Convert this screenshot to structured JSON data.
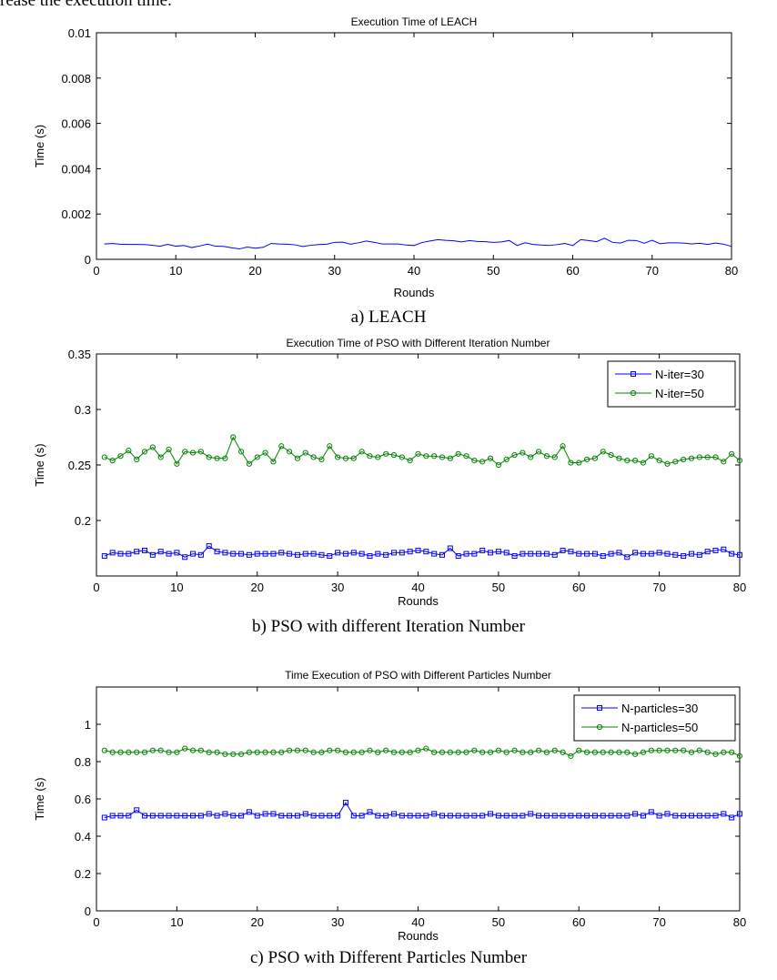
{
  "intro_text": "rease the execution time.",
  "chart_data": [
    {
      "type": "line",
      "title": "Execution Time of LEACH",
      "xlabel": "Rounds",
      "ylabel": "Time (s)",
      "caption": "a)    LEACH",
      "xlim": [
        0,
        80
      ],
      "ylim": [
        0,
        0.01
      ],
      "xticks": [
        "0",
        "10",
        "20",
        "30",
        "40",
        "50",
        "60",
        "70",
        "80"
      ],
      "yticks": [
        "0",
        "0.002",
        "0.004",
        "0.006",
        "0.008",
        "0.01"
      ],
      "grid": false,
      "legend": null,
      "colors": [
        "#0000ff"
      ],
      "x": [
        1,
        2,
        3,
        4,
        5,
        6,
        7,
        8,
        9,
        10,
        11,
        12,
        13,
        14,
        15,
        16,
        17,
        18,
        19,
        20,
        21,
        22,
        23,
        24,
        25,
        26,
        27,
        28,
        29,
        30,
        31,
        32,
        33,
        34,
        35,
        36,
        37,
        38,
        39,
        40,
        41,
        42,
        43,
        44,
        45,
        46,
        47,
        48,
        49,
        50,
        51,
        52,
        53,
        54,
        55,
        56,
        57,
        58,
        59,
        60,
        61,
        62,
        63,
        64,
        65,
        66,
        67,
        68,
        69,
        70,
        71,
        72,
        73,
        74,
        75,
        76,
        77,
        78,
        79,
        80
      ],
      "series": [
        {
          "values": [
            0.00068,
            0.0007,
            0.00067,
            0.00066,
            0.00066,
            0.00065,
            0.00062,
            0.00058,
            0.00066,
            0.00058,
            0.00061,
            0.00052,
            0.00059,
            0.00067,
            0.00058,
            0.00057,
            0.00051,
            0.00046,
            0.00054,
            0.00049,
            0.00053,
            0.0007,
            0.00068,
            0.00067,
            0.00064,
            0.00057,
            0.00062,
            0.00065,
            0.00067,
            0.00075,
            0.00076,
            0.00067,
            0.00073,
            0.00081,
            0.00075,
            0.00068,
            0.00068,
            0.00068,
            0.00063,
            0.00061,
            0.00074,
            0.00081,
            0.00087,
            0.00084,
            0.00082,
            0.00077,
            0.00083,
            0.00079,
            0.00078,
            0.00075,
            0.00077,
            0.00083,
            0.00061,
            0.00073,
            0.00066,
            0.00063,
            0.00061,
            0.00065,
            0.0007,
            0.00061,
            0.00087,
            0.00083,
            0.00078,
            0.00093,
            0.00075,
            0.00072,
            0.00084,
            0.00083,
            0.00071,
            0.00084,
            0.00069,
            0.00073,
            0.00073,
            0.00072,
            0.00068,
            0.00071,
            0.00066,
            0.00072,
            0.00067,
            0.00057
          ]
        }
      ]
    },
    {
      "type": "line",
      "title": "Execution Time of PSO with Different Iteration Number",
      "xlabel": "Rounds",
      "ylabel": "Time (s)",
      "caption": "b)    PSO with different Iteration Number",
      "xlim": [
        0,
        80
      ],
      "ylim": [
        0.15,
        0.35
      ],
      "xticks": [
        "0",
        "10",
        "20",
        "30",
        "40",
        "50",
        "60",
        "70",
        "80"
      ],
      "yticks": [
        "0.2",
        "0.25",
        "0.3",
        "0.35"
      ],
      "grid": false,
      "legend": "top-right",
      "colors": [
        "#0000ff",
        "#008000"
      ],
      "x": [
        1,
        2,
        3,
        4,
        5,
        6,
        7,
        8,
        9,
        10,
        11,
        12,
        13,
        14,
        15,
        16,
        17,
        18,
        19,
        20,
        21,
        22,
        23,
        24,
        25,
        26,
        27,
        28,
        29,
        30,
        31,
        32,
        33,
        34,
        35,
        36,
        37,
        38,
        39,
        40,
        41,
        42,
        43,
        44,
        45,
        46,
        47,
        48,
        49,
        50,
        51,
        52,
        53,
        54,
        55,
        56,
        57,
        58,
        59,
        60,
        61,
        62,
        63,
        64,
        65,
        66,
        67,
        68,
        69,
        70,
        71,
        72,
        73,
        74,
        75,
        76,
        77,
        78,
        79,
        80
      ],
      "series": [
        {
          "name": "N-iter=30",
          "marker": "square",
          "values": [
            0.168,
            0.171,
            0.17,
            0.17,
            0.172,
            0.173,
            0.169,
            0.172,
            0.17,
            0.171,
            0.167,
            0.17,
            0.169,
            0.177,
            0.172,
            0.171,
            0.17,
            0.17,
            0.169,
            0.17,
            0.17,
            0.17,
            0.171,
            0.17,
            0.169,
            0.17,
            0.17,
            0.169,
            0.168,
            0.171,
            0.17,
            0.171,
            0.17,
            0.168,
            0.17,
            0.169,
            0.171,
            0.171,
            0.172,
            0.173,
            0.172,
            0.17,
            0.169,
            0.175,
            0.168,
            0.17,
            0.17,
            0.173,
            0.171,
            0.172,
            0.171,
            0.168,
            0.17,
            0.17,
            0.17,
            0.17,
            0.169,
            0.173,
            0.172,
            0.17,
            0.17,
            0.17,
            0.168,
            0.17,
            0.171,
            0.167,
            0.171,
            0.17,
            0.17,
            0.171,
            0.17,
            0.169,
            0.168,
            0.17,
            0.169,
            0.172,
            0.173,
            0.174,
            0.17,
            0.169
          ]
        },
        {
          "name": "N-iter=50",
          "marker": "circle",
          "values": [
            0.257,
            0.254,
            0.258,
            0.263,
            0.255,
            0.262,
            0.266,
            0.257,
            0.264,
            0.251,
            0.262,
            0.261,
            0.262,
            0.257,
            0.256,
            0.256,
            0.275,
            0.262,
            0.251,
            0.257,
            0.261,
            0.253,
            0.267,
            0.262,
            0.256,
            0.261,
            0.257,
            0.255,
            0.267,
            0.257,
            0.256,
            0.256,
            0.262,
            0.258,
            0.257,
            0.26,
            0.259,
            0.257,
            0.254,
            0.26,
            0.258,
            0.258,
            0.257,
            0.256,
            0.26,
            0.258,
            0.254,
            0.253,
            0.256,
            0.25,
            0.255,
            0.259,
            0.261,
            0.257,
            0.262,
            0.258,
            0.257,
            0.267,
            0.252,
            0.252,
            0.255,
            0.256,
            0.262,
            0.259,
            0.256,
            0.254,
            0.254,
            0.252,
            0.258,
            0.254,
            0.251,
            0.253,
            0.255,
            0.256,
            0.257,
            0.257,
            0.257,
            0.253,
            0.26,
            0.254
          ]
        }
      ]
    },
    {
      "type": "line",
      "title": "Time Execution of PSO with Different Particles Number",
      "xlabel": "Rounds",
      "ylabel": "Time (s)",
      "caption": "c) PSO with Different Particles Number",
      "xlim": [
        0,
        80
      ],
      "ylim": [
        0,
        1.2
      ],
      "xticks": [
        "0",
        "10",
        "20",
        "30",
        "40",
        "50",
        "60",
        "70",
        "80"
      ],
      "yticks": [
        "0",
        "0.2",
        "0.4",
        "0.6",
        "0.8",
        "1"
      ],
      "grid": false,
      "legend": "top-right",
      "colors": [
        "#0000ff",
        "#008000"
      ],
      "x": [
        1,
        2,
        3,
        4,
        5,
        6,
        7,
        8,
        9,
        10,
        11,
        12,
        13,
        14,
        15,
        16,
        17,
        18,
        19,
        20,
        21,
        22,
        23,
        24,
        25,
        26,
        27,
        28,
        29,
        30,
        31,
        32,
        33,
        34,
        35,
        36,
        37,
        38,
        39,
        40,
        41,
        42,
        43,
        44,
        45,
        46,
        47,
        48,
        49,
        50,
        51,
        52,
        53,
        54,
        55,
        56,
        57,
        58,
        59,
        60,
        61,
        62,
        63,
        64,
        65,
        66,
        67,
        68,
        69,
        70,
        71,
        72,
        73,
        74,
        75,
        76,
        77,
        78,
        79,
        80
      ],
      "series": [
        {
          "name": "N-particles=30",
          "marker": "square",
          "values": [
            0.5,
            0.51,
            0.51,
            0.51,
            0.54,
            0.51,
            0.51,
            0.51,
            0.51,
            0.51,
            0.51,
            0.51,
            0.51,
            0.52,
            0.51,
            0.52,
            0.51,
            0.51,
            0.53,
            0.51,
            0.52,
            0.52,
            0.51,
            0.51,
            0.51,
            0.52,
            0.51,
            0.51,
            0.51,
            0.51,
            0.58,
            0.51,
            0.51,
            0.53,
            0.51,
            0.51,
            0.52,
            0.51,
            0.51,
            0.51,
            0.51,
            0.52,
            0.51,
            0.51,
            0.51,
            0.51,
            0.51,
            0.51,
            0.52,
            0.51,
            0.51,
            0.51,
            0.51,
            0.52,
            0.51,
            0.51,
            0.51,
            0.51,
            0.51,
            0.51,
            0.51,
            0.51,
            0.51,
            0.51,
            0.51,
            0.51,
            0.52,
            0.51,
            0.53,
            0.51,
            0.52,
            0.51,
            0.51,
            0.51,
            0.51,
            0.51,
            0.51,
            0.52,
            0.5,
            0.52
          ]
        },
        {
          "name": "N-particles=50",
          "marker": "circle",
          "values": [
            0.86,
            0.85,
            0.85,
            0.85,
            0.85,
            0.85,
            0.86,
            0.86,
            0.85,
            0.85,
            0.87,
            0.86,
            0.86,
            0.85,
            0.85,
            0.84,
            0.84,
            0.84,
            0.85,
            0.85,
            0.85,
            0.85,
            0.85,
            0.86,
            0.86,
            0.86,
            0.85,
            0.85,
            0.86,
            0.86,
            0.85,
            0.85,
            0.85,
            0.86,
            0.85,
            0.86,
            0.85,
            0.85,
            0.85,
            0.86,
            0.87,
            0.85,
            0.85,
            0.85,
            0.85,
            0.85,
            0.86,
            0.85,
            0.85,
            0.86,
            0.85,
            0.86,
            0.85,
            0.85,
            0.86,
            0.85,
            0.86,
            0.85,
            0.83,
            0.86,
            0.85,
            0.85,
            0.85,
            0.85,
            0.85,
            0.85,
            0.84,
            0.85,
            0.86,
            0.86,
            0.86,
            0.86,
            0.86,
            0.85,
            0.86,
            0.85,
            0.84,
            0.85,
            0.85,
            0.83
          ]
        }
      ]
    }
  ]
}
